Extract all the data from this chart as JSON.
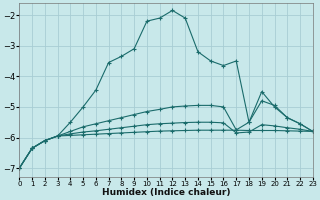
{
  "xlabel": "Humidex (Indice chaleur)",
  "bg_color": "#c8e8ea",
  "grid_color": "#a8cdd4",
  "line_color": "#1a6b6b",
  "xlim": [
    0,
    23
  ],
  "ylim": [
    -7.3,
    -1.6
  ],
  "yticks": [
    -7,
    -6,
    -5,
    -4,
    -3,
    -2
  ],
  "xticks": [
    0,
    1,
    2,
    3,
    4,
    5,
    6,
    7,
    8,
    9,
    10,
    11,
    12,
    13,
    14,
    15,
    16,
    17,
    18,
    19,
    20,
    21,
    22,
    23
  ],
  "line1_y": [
    -7.0,
    -6.35,
    -6.1,
    -5.95,
    -5.5,
    -5.0,
    -4.45,
    -3.55,
    -3.35,
    -3.1,
    -2.2,
    -2.1,
    -1.85,
    -2.1,
    -3.2,
    -3.5,
    -3.65,
    -3.5,
    -5.5,
    -4.5,
    -5.0,
    -5.35,
    -5.55,
    -5.8
  ],
  "line2_y": [
    -7.0,
    -6.35,
    -6.1,
    -5.95,
    -5.8,
    -5.65,
    -5.55,
    -5.45,
    -5.35,
    -5.25,
    -5.15,
    -5.08,
    -5.0,
    -4.97,
    -4.95,
    -4.95,
    -5.0,
    -5.75,
    -5.5,
    -4.8,
    -4.95,
    -5.35,
    -5.55,
    -5.8
  ],
  "line3_y": [
    -7.0,
    -6.35,
    -6.1,
    -5.95,
    -5.88,
    -5.82,
    -5.78,
    -5.73,
    -5.68,
    -5.63,
    -5.58,
    -5.55,
    -5.53,
    -5.51,
    -5.5,
    -5.5,
    -5.52,
    -5.85,
    -5.82,
    -5.58,
    -5.62,
    -5.68,
    -5.73,
    -5.8
  ],
  "line4_y": [
    -7.0,
    -6.35,
    -6.1,
    -5.95,
    -5.93,
    -5.91,
    -5.89,
    -5.87,
    -5.85,
    -5.83,
    -5.81,
    -5.79,
    -5.78,
    -5.77,
    -5.76,
    -5.76,
    -5.76,
    -5.76,
    -5.77,
    -5.77,
    -5.77,
    -5.78,
    -5.79,
    -5.8
  ]
}
